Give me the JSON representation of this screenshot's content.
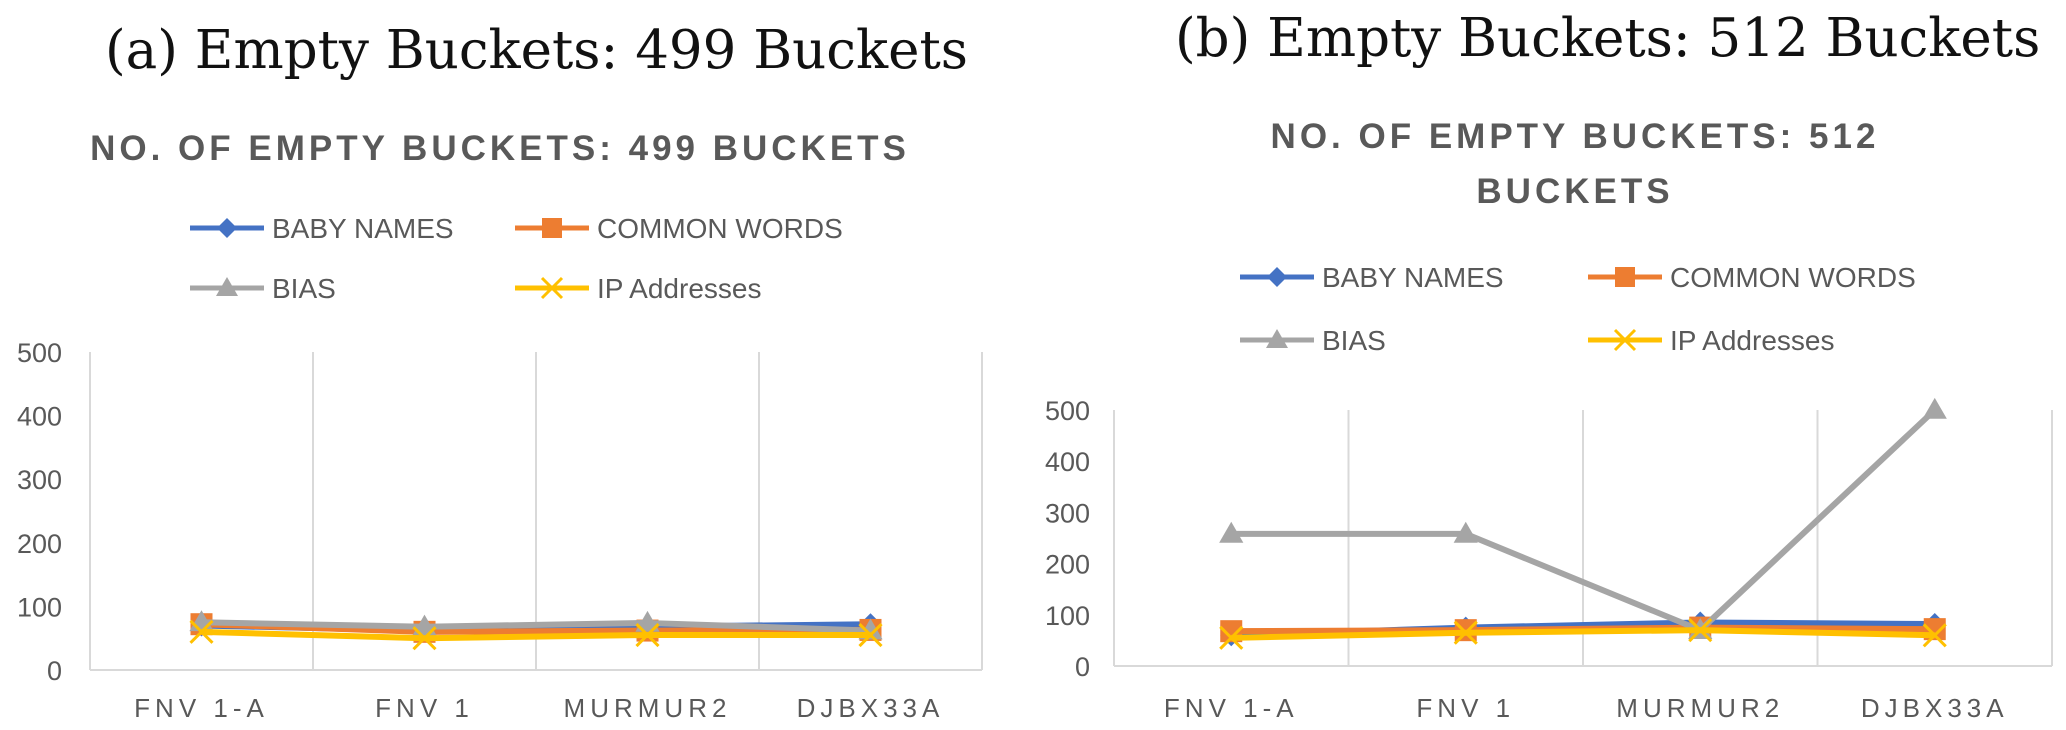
{
  "chart_data": [
    {
      "type": "line",
      "caption": "(a) Empty Buckets: 499 Buckets",
      "title_lines": [
        "NO. OF EMPTY BUCKETS: 499 BUCKETS"
      ],
      "categories": [
        "FNV 1-A",
        "FNV 1",
        "MURMUR2",
        "DJBX33A"
      ],
      "ylim": [
        0,
        500
      ],
      "yticks": [
        0,
        100,
        200,
        300,
        400,
        500
      ],
      "grid": "vertical",
      "legend": "top",
      "series": [
        {
          "name": "BABY NAMES",
          "values": [
            70,
            62,
            68,
            72
          ],
          "color": "#4472C4",
          "marker": "diamond"
        },
        {
          "name": "COMMON WORDS",
          "values": [
            72,
            60,
            62,
            63
          ],
          "color": "#ED7D31",
          "marker": "square"
        },
        {
          "name": "BIAS",
          "values": [
            75,
            68,
            74,
            62
          ],
          "color": "#A5A5A5",
          "marker": "triangle"
        },
        {
          "name": "IP Addresses",
          "values": [
            60,
            50,
            55,
            55
          ],
          "color": "#FFC000",
          "marker": "x"
        }
      ]
    },
    {
      "type": "line",
      "caption": "(b) Empty Buckets: 512 Buckets",
      "title_lines": [
        "NO. OF EMPTY BUCKETS: 512",
        "BUCKETS"
      ],
      "categories": [
        "FNV 1-A",
        "FNV 1",
        "MURMUR2",
        "DJBX33A"
      ],
      "ylim": [
        0,
        500
      ],
      "yticks": [
        0,
        100,
        200,
        300,
        400,
        500
      ],
      "grid": "vertical",
      "legend": "top",
      "series": [
        {
          "name": "BABY NAMES",
          "values": [
            60,
            75,
            85,
            82
          ],
          "color": "#4472C4",
          "marker": "diamond"
        },
        {
          "name": "COMMON WORDS",
          "values": [
            68,
            70,
            75,
            72
          ],
          "color": "#ED7D31",
          "marker": "square"
        },
        {
          "name": "BIAS",
          "values": [
            258,
            258,
            70,
            500
          ],
          "color": "#A5A5A5",
          "marker": "triangle"
        },
        {
          "name": "IP Addresses",
          "values": [
            55,
            65,
            70,
            60
          ],
          "color": "#FFC000",
          "marker": "x"
        }
      ]
    }
  ]
}
